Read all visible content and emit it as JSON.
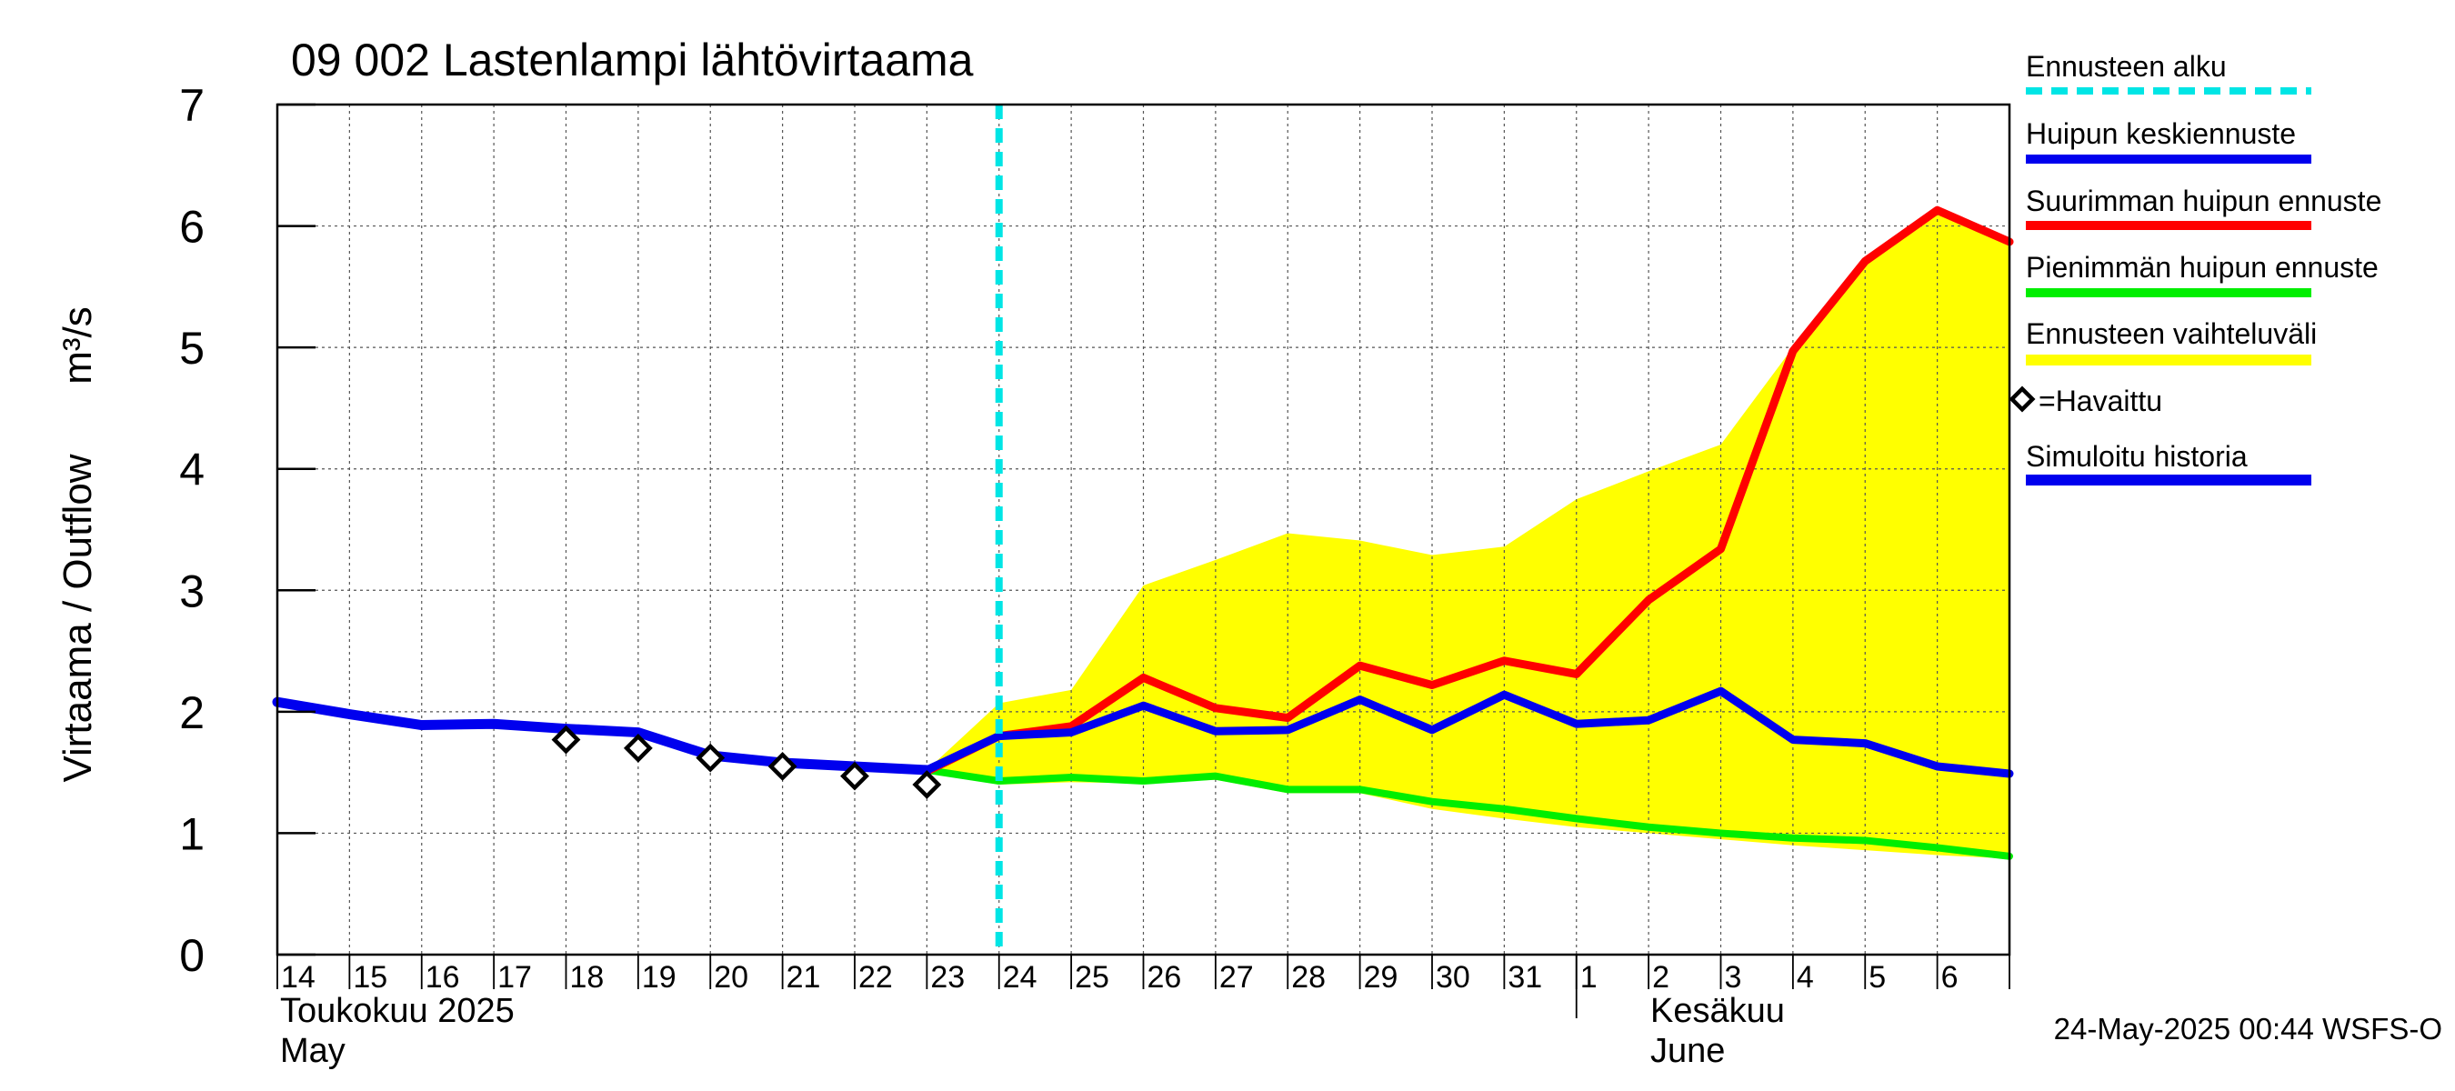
{
  "chart_data": {
    "type": "line",
    "title": "09 002 Lastenlampi lähtövirtaama",
    "ylabel": "Virtaama / Outflow",
    "yunit": "m³/s",
    "ylim": [
      0,
      7
    ],
    "yticks": [
      0,
      1,
      2,
      3,
      4,
      5,
      6,
      7
    ],
    "grid": true,
    "legend_position": "right",
    "x_dates": [
      "2025-05-14",
      "2025-05-15",
      "2025-05-16",
      "2025-05-17",
      "2025-05-18",
      "2025-05-19",
      "2025-05-20",
      "2025-05-21",
      "2025-05-22",
      "2025-05-23",
      "2025-05-24",
      "2025-05-25",
      "2025-05-26",
      "2025-05-27",
      "2025-05-28",
      "2025-05-29",
      "2025-05-30",
      "2025-05-31",
      "2025-06-01",
      "2025-06-02",
      "2025-06-03",
      "2025-06-04",
      "2025-06-05",
      "2025-06-06",
      "2025-06-07"
    ],
    "x_tick_labels": [
      "14",
      "15",
      "16",
      "17",
      "18",
      "19",
      "20",
      "21",
      "22",
      "23",
      "24",
      "25",
      "26",
      "27",
      "28",
      "29",
      "30",
      "31",
      "1",
      "2",
      "3",
      "4",
      "5",
      "6"
    ],
    "month_labels": [
      {
        "fi": "Toukokuu  2025",
        "en": "May"
      },
      {
        "fi": "Kesäkuu",
        "en": "June"
      }
    ],
    "forecast_start": "2025-05-24",
    "series": {
      "simulated_history": {
        "color": "#0000ee",
        "x": [
          "2025-05-14",
          "2025-05-15",
          "2025-05-16",
          "2025-05-17",
          "2025-05-18",
          "2025-05-19",
          "2025-05-20",
          "2025-05-21",
          "2025-05-22",
          "2025-05-23"
        ],
        "y": [
          2.08,
          1.98,
          1.89,
          1.9,
          1.86,
          1.83,
          1.64,
          1.58,
          1.55,
          1.52
        ]
      },
      "mean_peak_forecast": {
        "color": "#0000ee",
        "x": [
          "2025-05-23",
          "2025-05-24",
          "2025-05-25",
          "2025-05-26",
          "2025-05-27",
          "2025-05-28",
          "2025-05-29",
          "2025-05-30",
          "2025-05-31",
          "2025-06-01",
          "2025-06-02",
          "2025-06-03",
          "2025-06-04",
          "2025-06-05",
          "2025-06-06",
          "2025-06-07"
        ],
        "y": [
          1.52,
          1.8,
          1.83,
          2.05,
          1.84,
          1.85,
          2.1,
          1.85,
          2.14,
          1.9,
          1.93,
          2.17,
          1.77,
          1.74,
          1.55,
          1.49
        ]
      },
      "max_peak_forecast": {
        "color": "#ff0000",
        "x": [
          "2025-05-23",
          "2025-05-24",
          "2025-05-25",
          "2025-05-26",
          "2025-05-27",
          "2025-05-28",
          "2025-05-29",
          "2025-05-30",
          "2025-05-31",
          "2025-06-01",
          "2025-06-02",
          "2025-06-03",
          "2025-06-04",
          "2025-06-05",
          "2025-06-06",
          "2025-06-07"
        ],
        "y": [
          1.51,
          1.8,
          1.88,
          2.28,
          2.03,
          1.95,
          2.38,
          2.22,
          2.42,
          2.31,
          2.92,
          3.34,
          4.97,
          5.71,
          6.13,
          5.87
        ]
      },
      "min_peak_forecast": {
        "color": "#00ee00",
        "x": [
          "2025-05-23",
          "2025-05-24",
          "2025-05-25",
          "2025-05-26",
          "2025-05-27",
          "2025-05-28",
          "2025-05-29",
          "2025-05-30",
          "2025-05-31",
          "2025-06-01",
          "2025-06-02",
          "2025-06-03",
          "2025-06-04",
          "2025-06-05",
          "2025-06-06",
          "2025-06-07"
        ],
        "y": [
          1.52,
          1.43,
          1.46,
          1.43,
          1.47,
          1.36,
          1.36,
          1.26,
          1.2,
          1.12,
          1.05,
          1.0,
          0.96,
          0.94,
          0.88,
          0.81
        ]
      },
      "forecast_range": {
        "color": "#ffff00",
        "x": [
          "2025-05-23",
          "2025-05-24",
          "2025-05-25",
          "2025-05-26",
          "2025-05-27",
          "2025-05-28",
          "2025-05-29",
          "2025-05-30",
          "2025-05-31",
          "2025-06-01",
          "2025-06-02",
          "2025-06-03",
          "2025-06-04",
          "2025-06-05",
          "2025-06-06",
          "2025-06-07"
        ],
        "upper": [
          1.52,
          2.07,
          2.18,
          3.04,
          3.25,
          3.47,
          3.41,
          3.29,
          3.36,
          3.75,
          3.98,
          4.2,
          5.0,
          5.71,
          6.13,
          5.87
        ],
        "lower": [
          1.52,
          1.4,
          1.42,
          1.41,
          1.44,
          1.33,
          1.33,
          1.2,
          1.12,
          1.05,
          1.0,
          0.95,
          0.9,
          0.86,
          0.82,
          0.79
        ]
      },
      "observed": {
        "x": [
          "2025-05-18",
          "2025-05-19",
          "2025-05-20",
          "2025-05-21",
          "2025-05-22",
          "2025-05-23"
        ],
        "y": [
          1.77,
          1.7,
          1.62,
          1.55,
          1.47,
          1.4
        ]
      }
    },
    "legend": [
      {
        "label": "Ennusteen alku",
        "color": "#00e5e5",
        "style": "dashed"
      },
      {
        "label": "Huipun keskiennuste",
        "color": "#0000ee",
        "style": "line"
      },
      {
        "label": "Suurimman huipun ennuste",
        "color": "#ff0000",
        "style": "line"
      },
      {
        "label": "Pienimmän huipun ennuste",
        "color": "#00ee00",
        "style": "line"
      },
      {
        "label": "Ennusteen vaihteluväli",
        "color": "#ffff00",
        "style": "band"
      },
      {
        "label": "=Havaittu",
        "color": "#000000",
        "style": "marker"
      },
      {
        "label": "Simuloitu historia",
        "color": "#0000ee",
        "style": "line"
      }
    ],
    "timestamp": "24-May-2025 00:44 WSFS-O"
  }
}
